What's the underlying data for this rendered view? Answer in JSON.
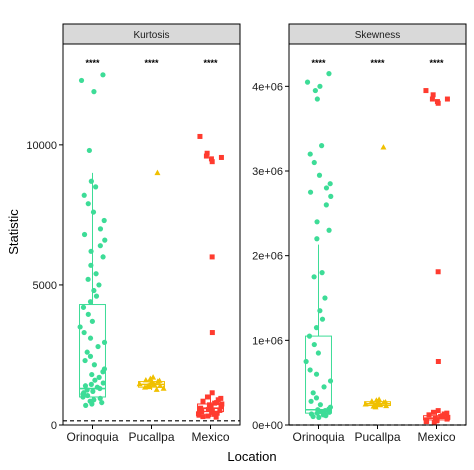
{
  "chart_data": [
    {
      "type": "scatter",
      "panel_title": "Kurtosis",
      "ylabel": "Statistic",
      "xlabel": "Location",
      "categories": [
        "Orinoquia",
        "Pucallpa",
        "Mexico"
      ],
      "ylim": [
        0,
        13600
      ],
      "yticks": [
        0,
        5000,
        10000
      ],
      "ytick_labels": [
        "0",
        "5000",
        "10000"
      ],
      "reference_line": 150,
      "significance": [
        "****",
        "****",
        "****"
      ],
      "boxplots": [
        {
          "category": "Orinoquia",
          "q1": 1000,
          "median": 1300,
          "q3": 4300,
          "whisker_low": 700,
          "whisker_high": 9000,
          "color": "#3ddc97"
        },
        {
          "category": "Pucallpa",
          "q1": 1350,
          "median": 1450,
          "q3": 1550,
          "whisker_low": 1250,
          "whisker_high": 1700,
          "color": "#f0c000"
        },
        {
          "category": "Mexico",
          "q1": 480,
          "median": 600,
          "q3": 750,
          "whisker_low": 280,
          "whisker_high": 1150,
          "color": "#ff3b2f"
        }
      ],
      "series": [
        {
          "category": "Orinoquia",
          "marker": "circle",
          "color": "#3ddc97",
          "values": [
            12500,
            12300,
            11900,
            9800,
            8700,
            8500,
            8200,
            7900,
            7600,
            7300,
            7000,
            6800,
            6600,
            6400,
            6200,
            6000,
            5700,
            5400,
            5200,
            5000,
            4800,
            4600,
            4400,
            4200,
            3950,
            3700,
            3500,
            3300,
            3100,
            2950,
            2800,
            2600,
            2450,
            2300,
            2150,
            2000,
            1900,
            1800,
            1700,
            1600,
            1500,
            1450,
            1400,
            1350,
            1300,
            1250,
            1200,
            1150,
            1100,
            1050,
            1000,
            950,
            900,
            850,
            800,
            750,
            700
          ]
        },
        {
          "category": "Pucallpa",
          "marker": "triangle",
          "color": "#f0c000",
          "values": [
            9000,
            1700,
            1650,
            1600,
            1580,
            1550,
            1530,
            1500,
            1480,
            1460,
            1450,
            1440,
            1420,
            1400,
            1380,
            1360,
            1340,
            1300,
            1260
          ]
        },
        {
          "category": "Mexico",
          "marker": "square",
          "color": "#ff3b2f",
          "values": [
            10300,
            9700,
            9600,
            9550,
            9500,
            9400,
            6000,
            3300,
            1150,
            1000,
            950,
            900,
            850,
            800,
            780,
            750,
            720,
            700,
            680,
            650,
            620,
            600,
            580,
            550,
            520,
            500,
            480,
            450,
            420,
            400,
            380,
            350,
            320,
            300,
            280
          ]
        }
      ]
    },
    {
      "type": "scatter",
      "panel_title": "Skewness",
      "ylabel": "Statistic",
      "xlabel": "Location",
      "categories": [
        "Orinoquia",
        "Pucallpa",
        "Mexico"
      ],
      "ylim": [
        0,
        4500000
      ],
      "yticks": [
        0,
        1000000,
        2000000,
        3000000,
        4000000
      ],
      "ytick_labels": [
        "0e+00",
        "1e+06",
        "2e+06",
        "3e+06",
        "4e+06"
      ],
      "reference_line": 0,
      "significance": [
        "****",
        "****",
        "****"
      ],
      "boxplots": [
        {
          "category": "Orinoquia",
          "q1": 140000,
          "median": 180000,
          "q3": 1050000,
          "whisker_low": 100000,
          "whisker_high": 2130000,
          "color": "#3ddc97"
        },
        {
          "category": "Pucallpa",
          "q1": 230000,
          "median": 250000,
          "q3": 275000,
          "whisker_low": 200000,
          "whisker_high": 300000,
          "color": "#f0c000"
        },
        {
          "category": "Mexico",
          "q1": 60000,
          "median": 80000,
          "q3": 110000,
          "whisker_low": 30000,
          "whisker_high": 170000,
          "color": "#ff3b2f"
        }
      ],
      "series": [
        {
          "category": "Orinoquia",
          "marker": "circle",
          "color": "#3ddc97",
          "values": [
            4150000,
            4050000,
            4000000,
            3950000,
            3850000,
            3300000,
            3200000,
            3100000,
            2950000,
            2850000,
            2800000,
            2750000,
            2700000,
            2600000,
            2400000,
            2300000,
            2200000,
            1800000,
            1750000,
            1500000,
            1350000,
            1250000,
            1150000,
            1050000,
            950000,
            850000,
            750000,
            650000,
            600000,
            520000,
            450000,
            380000,
            320000,
            280000,
            240000,
            210000,
            190000,
            180000,
            170000,
            160000,
            150000,
            140000,
            130000,
            120000,
            110000,
            100000,
            90000
          ]
        },
        {
          "category": "Pucallpa",
          "marker": "triangle",
          "color": "#f0c000",
          "values": [
            3280000,
            300000,
            290000,
            280000,
            270000,
            265000,
            260000,
            255000,
            250000,
            245000,
            240000,
            235000,
            230000,
            225000,
            220000,
            210000
          ]
        },
        {
          "category": "Mexico",
          "marker": "square",
          "color": "#ff3b2f",
          "values": [
            3950000,
            3900000,
            3850000,
            3850000,
            3820000,
            3800000,
            1810000,
            750000,
            170000,
            150000,
            140000,
            130000,
            120000,
            110000,
            100000,
            90000,
            80000,
            70000,
            60000,
            55000,
            50000,
            45000,
            40000,
            30000
          ]
        }
      ]
    }
  ]
}
